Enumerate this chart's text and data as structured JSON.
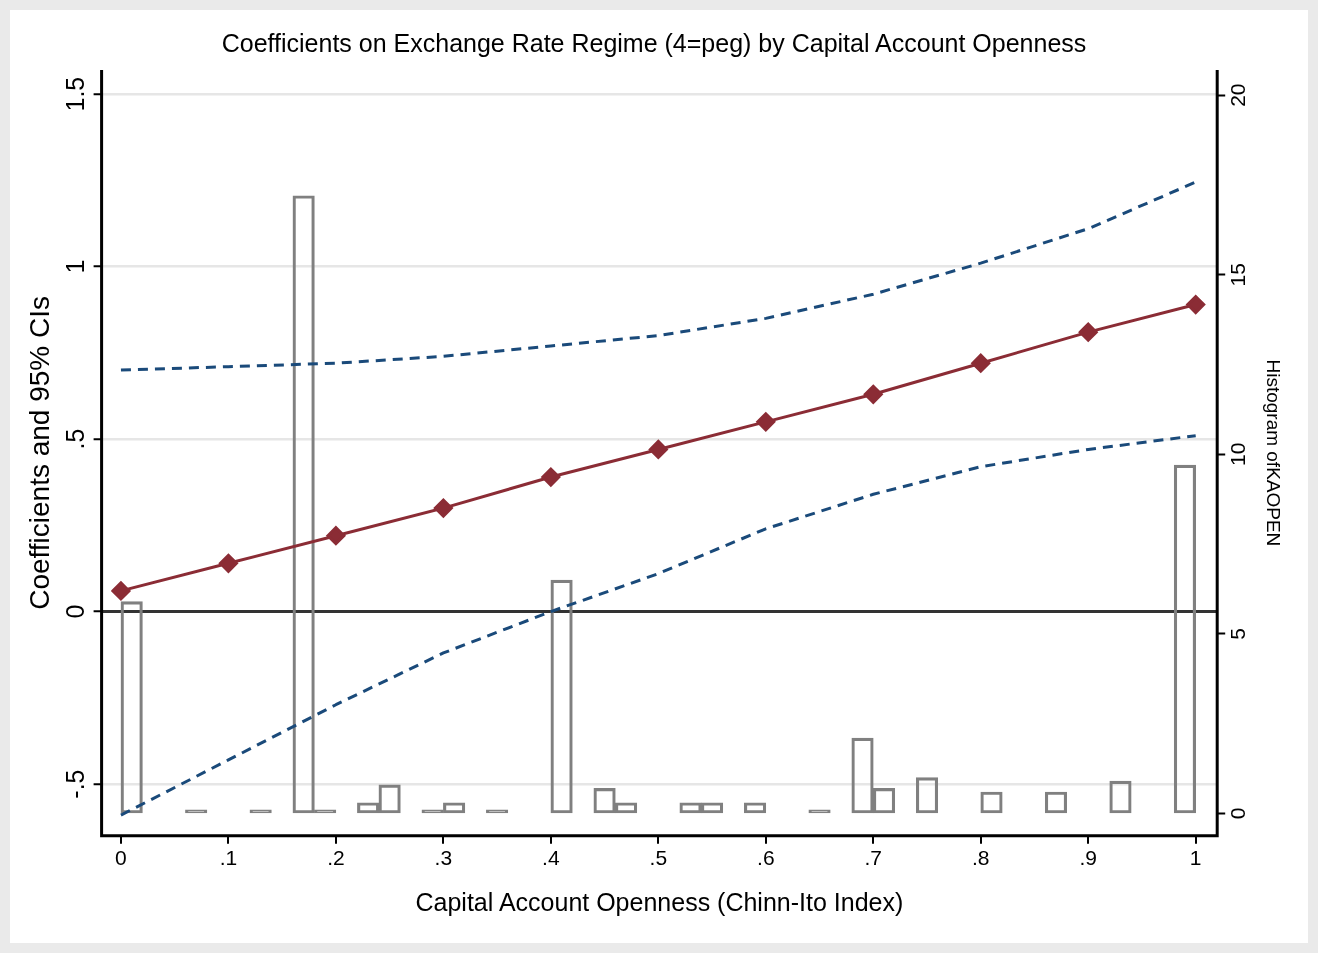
{
  "chart_data": {
    "type": "line",
    "title": "Coefficients on Exchange Rate Regime (4=peg) by Capital Account Openness",
    "xlabel": "Capital Account Openness (Chinn-Ito Index)",
    "ylabel": "Coefficients and 95% CIs",
    "y2label": "Histogram ofKAOPEN",
    "x": [
      0,
      0.1,
      0.2,
      0.3,
      0.4,
      0.5,
      0.6,
      0.7,
      0.8,
      0.9,
      1
    ],
    "series": [
      {
        "type": "bar",
        "axis": "y2",
        "color": "#808080",
        "x": [
          0.01,
          0.03,
          0.05,
          0.07,
          0.09,
          0.11,
          0.13,
          0.15,
          0.17,
          0.19,
          0.21,
          0.23,
          0.25,
          0.27,
          0.29,
          0.31,
          0.33,
          0.35,
          0.37,
          0.39,
          0.41,
          0.43,
          0.45,
          0.47,
          0.49,
          0.51,
          0.53,
          0.55,
          0.57,
          0.59,
          0.61,
          0.63,
          0.65,
          0.67,
          0.69,
          0.71,
          0.73,
          0.75,
          0.77,
          0.79,
          0.81,
          0.83,
          0.85,
          0.87,
          0.89,
          0.91,
          0.93,
          0.95,
          0.97,
          0.99
        ],
        "values": [
          5.9,
          0,
          0,
          0.1,
          0,
          0,
          0.1,
          0,
          17.2,
          0.1,
          0,
          0.3,
          0.8,
          0,
          0.1,
          0.3,
          0,
          0.1,
          0,
          0,
          6.5,
          0,
          0.7,
          0.3,
          0,
          0,
          0.3,
          0.3,
          0,
          0.3,
          0,
          0,
          0.1,
          0,
          2.1,
          0.7,
          0,
          1,
          0,
          0,
          0.6,
          0,
          0,
          0.6,
          0,
          0,
          0.9,
          0,
          0,
          9.7
        ]
      },
      {
        "type": "line",
        "color": "#8b2c35",
        "marker": "diamond",
        "line_style": "solid",
        "values": [
          0.06,
          0.14,
          0.22,
          0.3,
          0.39,
          0.47,
          0.55,
          0.63,
          0.72,
          0.81,
          0.89
        ]
      },
      {
        "type": "line",
        "color": "#1a4a7a",
        "marker": "none",
        "line_style": "dashed",
        "values": [
          0.7,
          0.71,
          0.72,
          0.74,
          0.77,
          0.8,
          0.85,
          0.92,
          1.01,
          1.11,
          1.245
        ]
      },
      {
        "type": "line",
        "color": "#1a4a7a",
        "marker": "none",
        "line_style": "dashed",
        "values": [
          -0.59,
          -0.43,
          -0.27,
          -0.12,
          0,
          0.11,
          0.24,
          0.34,
          0.42,
          0.47,
          0.51
        ]
      }
    ],
    "xlim": [
      -0.018,
      1.02
    ],
    "xticks": [
      0,
      {
        "value": 0.1,
        "label": ".1"
      },
      {
        "value": 0.2,
        "label": ".2"
      },
      {
        "value": 0.3,
        "label": ".3"
      },
      {
        "value": 0.4,
        "label": ".4"
      },
      {
        "value": 0.5,
        "label": ".5"
      },
      {
        "value": 0.6,
        "label": ".6"
      },
      {
        "value": 0.7,
        "label": ".7"
      },
      {
        "value": 0.8,
        "label": ".8"
      },
      {
        "value": 0.9,
        "label": ".9"
      },
      1
    ],
    "ylim": [
      -0.65,
      1.57
    ],
    "yticks": [
      {
        "value": -0.5,
        "label": "-.5"
      },
      0,
      {
        "value": 0.5,
        "label": ".5"
      },
      1,
      1.5
    ],
    "y2lim": [
      -0.62,
      20.7
    ],
    "y2ticks": [
      0,
      5,
      10,
      15,
      20
    ],
    "ref_lines": [
      {
        "axis": "y",
        "value": 0,
        "color": "#333333"
      }
    ],
    "grid": "y",
    "legend": false
  }
}
